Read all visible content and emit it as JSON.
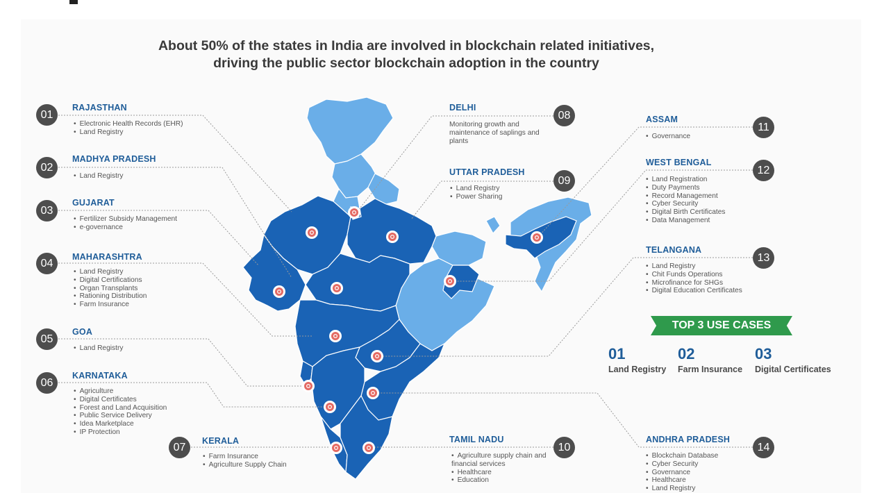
{
  "heading": {
    "line1": "About 50% of the states in India are involved in blockchain related initiatives,",
    "line2": "driving the public sector blockchain adoption in the country"
  },
  "colors": {
    "dark_blue": "#1a63b5",
    "light_blue": "#6aaee8",
    "state_title": "#1f5d99",
    "number_circle": "#4d4d4d",
    "marker": "#e46a63",
    "banner_green": "#2f9a4c"
  },
  "states": [
    {
      "number": "01",
      "name": "RAJASTHAN",
      "items": [
        "Electronic Health Records (EHR)",
        "Land Registry"
      ]
    },
    {
      "number": "02",
      "name": "MADHYA PRADESH",
      "items": [
        "Land Registry"
      ]
    },
    {
      "number": "03",
      "name": "GUJARAT",
      "items": [
        "Fertilizer Subsidy Management",
        "e-governance"
      ]
    },
    {
      "number": "04",
      "name": "MAHARASHTRA",
      "items": [
        "Land Registry",
        "Digital Certifications",
        "Organ Transplants",
        "Rationing Distribution",
        "Farm Insurance"
      ]
    },
    {
      "number": "05",
      "name": "GOA",
      "items": [
        "Land Registry"
      ]
    },
    {
      "number": "06",
      "name": "KARNATAKA",
      "items": [
        "Agriculture",
        "Digital Certificates",
        "Forest and Land Acquisition",
        "Public Service Delivery",
        "Idea Marketplace",
        "IP Protection"
      ]
    },
    {
      "number": "07",
      "name": "KERALA",
      "items": [
        "Farm Insurance",
        "Agriculture Supply Chain"
      ]
    },
    {
      "number": "08",
      "name": "DELHI",
      "description": "Monitoring growth and maintenance of saplings and plants"
    },
    {
      "number": "09",
      "name": "UTTAR PRADESH",
      "items": [
        "Land Registry",
        "Power Sharing"
      ]
    },
    {
      "number": "10",
      "name": "TAMIL NADU",
      "items": [
        "Agriculture supply chain and financial services",
        "Healthcare",
        "Education"
      ]
    },
    {
      "number": "11",
      "name": "ASSAM",
      "items": [
        "Governance"
      ]
    },
    {
      "number": "12",
      "name": "WEST BENGAL",
      "items": [
        "Land Registration",
        "Duty Payments",
        "Record Management",
        "Cyber Security",
        "Digital Birth Certificates",
        "Data Management"
      ]
    },
    {
      "number": "13",
      "name": "TELANGANA",
      "items": [
        "Land Registry",
        "Chit Funds Operations",
        "Microfinance for SHGs",
        "Digital Education Certificates"
      ]
    },
    {
      "number": "14",
      "name": "ANDHRA PRADESH",
      "items": [
        "Blockchain Database",
        "Cyber Security",
        "Governance",
        "Healthcare",
        "Land Registry"
      ]
    }
  ],
  "top_use_cases": {
    "banner": "TOP 3 USE CASES",
    "cases": [
      {
        "number": "01",
        "label": "Land Registry"
      },
      {
        "number": "02",
        "label": "Farm Insurance"
      },
      {
        "number": "03",
        "label": "Digital Certificates"
      }
    ]
  }
}
